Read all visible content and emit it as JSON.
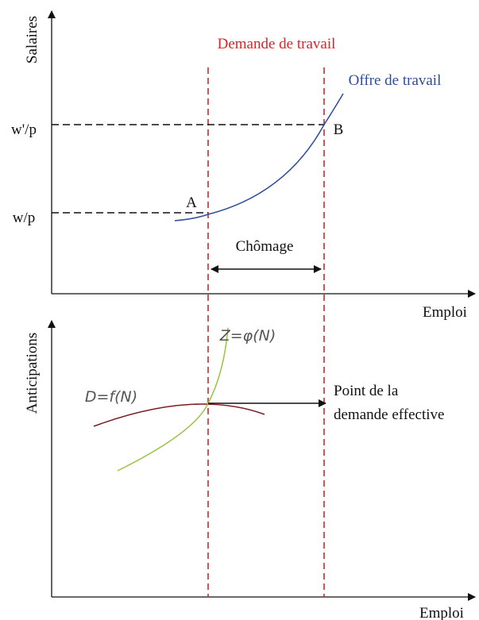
{
  "top_panel": {
    "y_axis_label": "Salaires",
    "x_axis_label": "Emploi",
    "demand_label": "Demande de travail",
    "supply_label": "Offre de travail",
    "wage_high": "w'/p",
    "wage_low": "w/p",
    "point_a": "A",
    "point_b": "B",
    "unemployment": "Chômage"
  },
  "bottom_panel": {
    "y_axis_label": "Anticipations",
    "x_axis_label": "Emploi",
    "z_curve": "Z=φ(N)",
    "d_curve": "D=f(N)",
    "effective_demand": [
      "Point de la",
      "demande effective"
    ]
  }
}
